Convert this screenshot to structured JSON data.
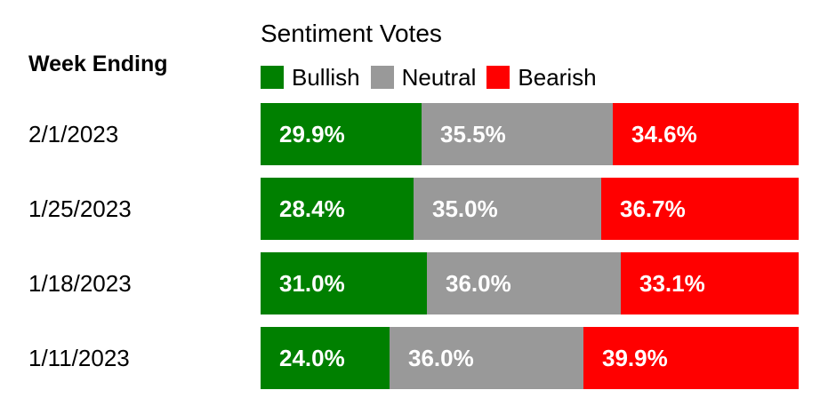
{
  "header": {
    "week_label": "Week Ending",
    "title": "Sentiment Votes"
  },
  "legend": [
    {
      "label": "Bullish",
      "color": "#008000"
    },
    {
      "label": "Neutral",
      "color": "#999999"
    },
    {
      "label": "Bearish",
      "color": "#ff0000"
    }
  ],
  "chart_data": {
    "type": "bar",
    "orientation": "horizontal",
    "stacked": true,
    "normalized": true,
    "title": "Sentiment Votes",
    "row_header": "Week Ending",
    "categories": [
      "2/1/2023",
      "1/25/2023",
      "1/18/2023",
      "1/11/2023"
    ],
    "series": [
      {
        "name": "Bullish",
        "color": "#008000",
        "values": [
          29.9,
          28.4,
          31.0,
          24.0
        ],
        "labels": [
          "29.9%",
          "28.4%",
          "31.0%",
          "24.0%"
        ]
      },
      {
        "name": "Neutral",
        "color": "#999999",
        "values": [
          35.5,
          35.0,
          36.0,
          36.0
        ],
        "labels": [
          "35.5%",
          "35.0%",
          "36.0%",
          "36.0%"
        ]
      },
      {
        "name": "Bearish",
        "color": "#ff0000",
        "values": [
          34.6,
          36.7,
          33.1,
          39.9
        ],
        "labels": [
          "34.6%",
          "36.7%",
          "33.1%",
          "39.9%"
        ]
      }
    ],
    "legend_position": "top-left",
    "grid": false
  }
}
